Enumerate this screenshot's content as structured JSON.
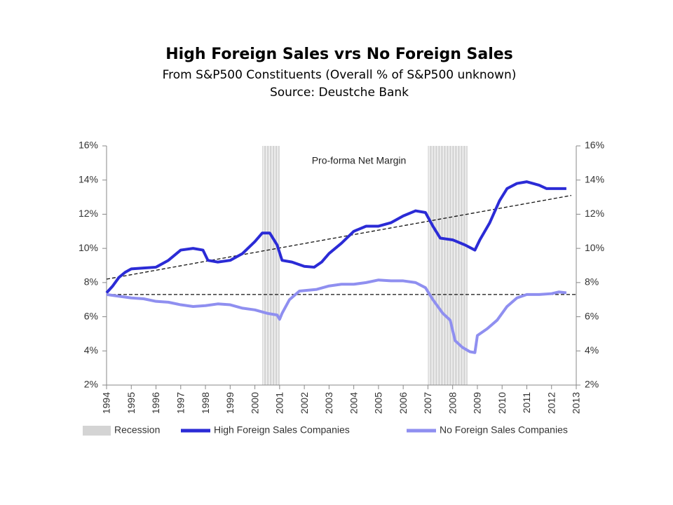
{
  "chart_data": {
    "type": "line",
    "title": "High Foreign Sales vrs No Foreign Sales",
    "subtitle": "From S&P500 Constituents (Overall % of S&P500 unknown)",
    "source": "Source: Deustche Bank",
    "annotation": "Pro-forma Net Margin",
    "xlim": [
      1994,
      2013
    ],
    "xticks": [
      1994,
      1995,
      1996,
      1997,
      1998,
      1999,
      2000,
      2001,
      2002,
      2003,
      2004,
      2005,
      2006,
      2007,
      2008,
      2009,
      2010,
      2011,
      2012,
      2013
    ],
    "ylim": [
      2,
      16
    ],
    "yticks": [
      {
        "value": 2,
        "label": "2%"
      },
      {
        "value": 4,
        "label": "4%"
      },
      {
        "value": 6,
        "label": "6%"
      },
      {
        "value": 8,
        "label": "8%"
      },
      {
        "value": 10,
        "label": "10%"
      },
      {
        "value": 12,
        "label": "12%"
      },
      {
        "value": 14,
        "label": "14%"
      },
      {
        "value": 16,
        "label": "16%"
      }
    ],
    "y2lim": [
      2,
      16
    ],
    "y2ticks": [
      {
        "value": 2,
        "label": "2%"
      },
      {
        "value": 4,
        "label": "4%"
      },
      {
        "value": 6,
        "label": "6%"
      },
      {
        "value": 8,
        "label": "8%"
      },
      {
        "value": 10,
        "label": "10%"
      },
      {
        "value": 12,
        "label": "12%"
      },
      {
        "value": 14,
        "label": "14%"
      },
      {
        "value": 16,
        "label": "16%"
      }
    ],
    "recession": {
      "name": "Recession",
      "color": "#d4d4d4",
      "spans": [
        [
          2000.3,
          2001.0
        ],
        [
          2007.0,
          2008.6
        ]
      ]
    },
    "series": [
      {
        "name": "High Foreign Sales Companies",
        "color": "#2b2bd6",
        "x": [
          1994,
          1994.25,
          1994.5,
          1994.75,
          1995,
          1995.5,
          1996,
          1996.5,
          1997,
          1997.5,
          1997.9,
          1998.1,
          1998.5,
          1999,
          1999.5,
          2000,
          2000.3,
          2000.6,
          2000.9,
          2001.1,
          2001.5,
          2002,
          2002.4,
          2002.7,
          2003,
          2003.5,
          2004,
          2004.5,
          2005,
          2005.5,
          2006,
          2006.5,
          2006.9,
          2007.2,
          2007.5,
          2008,
          2008.5,
          2008.9,
          2009.1,
          2009.5,
          2009.9,
          2010.2,
          2010.6,
          2011,
          2011.5,
          2011.8,
          2012.3,
          2012.6
        ],
        "values": [
          7.4,
          7.8,
          8.3,
          8.6,
          8.8,
          8.85,
          8.9,
          9.3,
          9.9,
          10.0,
          9.9,
          9.3,
          9.2,
          9.3,
          9.7,
          10.4,
          10.9,
          10.9,
          10.2,
          9.3,
          9.2,
          8.95,
          8.9,
          9.2,
          9.7,
          10.3,
          11.0,
          11.3,
          11.3,
          11.5,
          11.9,
          12.2,
          12.1,
          11.3,
          10.6,
          10.5,
          10.2,
          9.9,
          10.5,
          11.5,
          12.8,
          13.5,
          13.8,
          13.9,
          13.7,
          13.5,
          13.5,
          13.5
        ]
      },
      {
        "name": "No Foreign Sales Companies",
        "color": "#8f8ff0",
        "x": [
          1994,
          1994.5,
          1995,
          1995.5,
          1996,
          1996.5,
          1997,
          1997.5,
          1998,
          1998.5,
          1999,
          1999.5,
          2000,
          2000.5,
          2000.9,
          2001,
          2001.1,
          2001.4,
          2001.8,
          2002.5,
          2003,
          2003.5,
          2004,
          2004.5,
          2005,
          2005.5,
          2006,
          2006.5,
          2006.9,
          2007.2,
          2007.6,
          2007.9,
          2008.1,
          2008.4,
          2008.7,
          2008.9,
          2009.0,
          2009.4,
          2009.8,
          2010.2,
          2010.6,
          2011,
          2011.5,
          2012,
          2012.3,
          2012.6
        ],
        "values": [
          7.3,
          7.2,
          7.1,
          7.05,
          6.9,
          6.85,
          6.7,
          6.6,
          6.65,
          6.75,
          6.7,
          6.5,
          6.4,
          6.2,
          6.1,
          5.85,
          6.2,
          7.0,
          7.5,
          7.6,
          7.8,
          7.9,
          7.9,
          8.0,
          8.15,
          8.1,
          8.1,
          8.0,
          7.7,
          7.0,
          6.2,
          5.8,
          4.6,
          4.2,
          3.95,
          3.9,
          4.9,
          5.3,
          5.8,
          6.6,
          7.1,
          7.3,
          7.3,
          7.35,
          7.45,
          7.4
        ]
      }
    ],
    "trend_lines": [
      {
        "x": [
          1994,
          2012.8
        ],
        "y": [
          8.2,
          13.1
        ]
      },
      {
        "x": [
          1994,
          2013
        ],
        "y": [
          7.3,
          7.3
        ]
      }
    ]
  }
}
